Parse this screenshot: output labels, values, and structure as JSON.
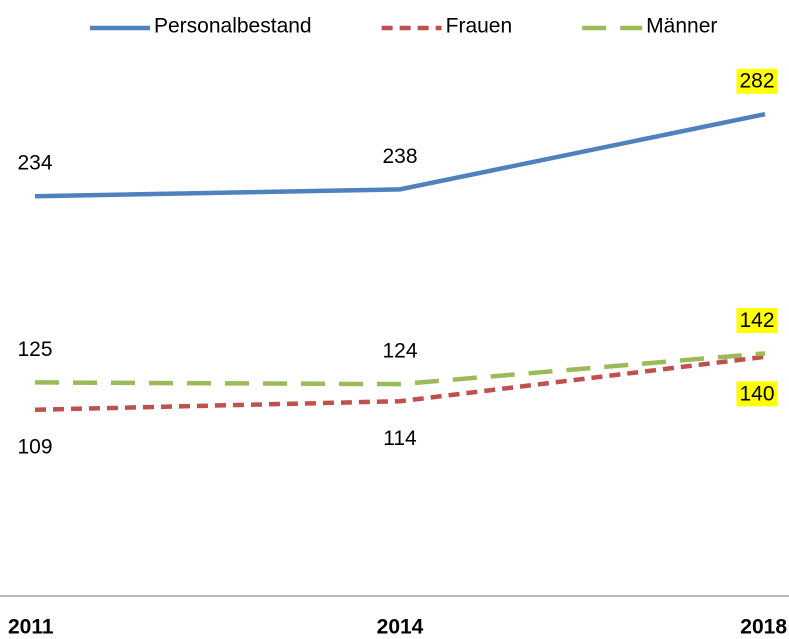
{
  "chart_data": {
    "type": "line",
    "categories": [
      "2011",
      "2014",
      "2018"
    ],
    "series": [
      {
        "name": "Personalbestand",
        "color": "#4f81bd",
        "dash": "solid",
        "label_position": "above",
        "values": [
          234,
          238,
          282
        ]
      },
      {
        "name": "Frauen",
        "color": "#c0504d",
        "dash": "dashed",
        "label_position": "below",
        "values": [
          109,
          114,
          140
        ]
      },
      {
        "name": "Männer",
        "color": "#9bbb59",
        "dash": "long-dashed",
        "label_position": "above",
        "values": [
          125,
          124,
          142
        ]
      }
    ],
    "ylim": [
      0,
      350
    ],
    "highlight_last": true,
    "highlight_color": "#ffff00",
    "legend": "top"
  }
}
